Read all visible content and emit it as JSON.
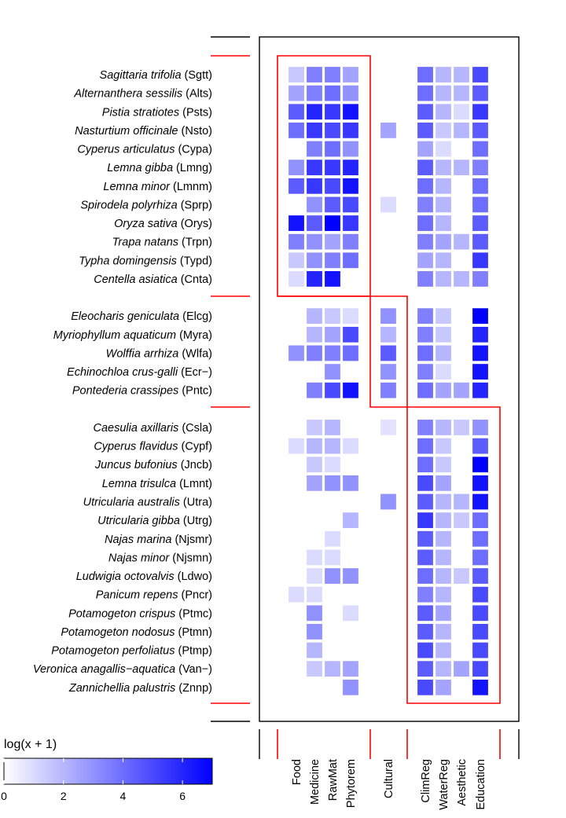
{
  "chart_data": {
    "type": "heatmap",
    "colorbar": {
      "title": "log(x + 1)",
      "ticks": [
        "0",
        "2",
        "4",
        "6"
      ],
      "range": [
        0,
        7
      ],
      "low_color": "#ffffff",
      "high_color": "#0000ff"
    },
    "columns": [
      "Food",
      "Medicine",
      "RawMat",
      "Phytorem",
      "Cultural",
      "ClimReg",
      "WaterReg",
      "Aesthetic",
      "Education"
    ],
    "column_group_sizes": [
      4,
      1,
      4
    ],
    "row_group_sizes": [
      12,
      5,
      15
    ],
    "rows": [
      {
        "name": "Sagittaria trifolia",
        "code": "(Sgtt)",
        "values": [
          1.5,
          3.5,
          3.5,
          2.5,
          null,
          4.0,
          2.0,
          2.0,
          5.0
        ]
      },
      {
        "name": "Alternanthera sessilis",
        "code": "(Alts)",
        "values": [
          2.5,
          3.5,
          4.0,
          3.0,
          null,
          4.0,
          2.0,
          2.0,
          4.5
        ]
      },
      {
        "name": "Pistia stratiotes",
        "code": "(Psts)",
        "values": [
          4.5,
          6.0,
          5.5,
          6.5,
          null,
          4.5,
          2.0,
          1.0,
          5.5
        ]
      },
      {
        "name": "Nasturtium officinale",
        "code": "(Nsto)",
        "values": [
          4.0,
          5.5,
          5.0,
          5.5,
          2.5,
          4.5,
          1.5,
          2.0,
          4.5
        ]
      },
      {
        "name": "Cyperus articulatus",
        "code": "(Cypa)",
        "values": [
          null,
          3.5,
          4.0,
          3.0,
          null,
          2.5,
          1.0,
          null,
          4.0
        ]
      },
      {
        "name": "Lemna gibba",
        "code": "(Lmng)",
        "values": [
          3.0,
          5.5,
          5.5,
          6.0,
          null,
          4.5,
          2.0,
          2.0,
          3.5
        ]
      },
      {
        "name": "Lemna minor",
        "code": "(Lmnm)",
        "values": [
          4.5,
          5.5,
          5.0,
          6.5,
          null,
          4.0,
          2.0,
          null,
          4.0
        ]
      },
      {
        "name": "Spirodela polyrhiza",
        "code": "(Sprp)",
        "values": [
          null,
          3.0,
          4.5,
          5.0,
          1.0,
          3.5,
          2.0,
          null,
          4.0
        ]
      },
      {
        "name": "Oryza sativa",
        "code": "(Orys)",
        "values": [
          6.5,
          4.5,
          7.0,
          5.5,
          null,
          4.0,
          2.0,
          null,
          4.5
        ]
      },
      {
        "name": "Trapa natans",
        "code": "(Trpn)",
        "values": [
          3.5,
          3.0,
          2.5,
          3.5,
          null,
          3.5,
          2.5,
          2.0,
          4.5
        ]
      },
      {
        "name": "Typha domingensis",
        "code": "(Typd)",
        "values": [
          1.5,
          3.0,
          3.5,
          4.0,
          null,
          2.5,
          2.0,
          null,
          5.5
        ]
      },
      {
        "name": "Centella asiatica",
        "code": "(Cnta)",
        "values": [
          1.0,
          6.0,
          6.5,
          null,
          null,
          3.5,
          2.0,
          2.0,
          3.5
        ]
      },
      {
        "name": "Eleocharis geniculata",
        "code": "(Elcg)",
        "values": [
          null,
          2.0,
          1.5,
          1.0,
          3.0,
          3.5,
          1.5,
          null,
          7.0
        ]
      },
      {
        "name": "Myriophyllum aquaticum",
        "code": "(Myra)",
        "values": [
          null,
          2.0,
          2.5,
          5.0,
          2.0,
          3.5,
          1.5,
          null,
          6.0
        ]
      },
      {
        "name": "Wolffia arrhiza",
        "code": "(Wlfa)",
        "values": [
          3.0,
          3.5,
          3.5,
          4.0,
          4.5,
          4.0,
          2.0,
          null,
          6.5
        ]
      },
      {
        "name": "Echinochloa crus-galli",
        "code": "(Ecr−)",
        "values": [
          null,
          null,
          3.0,
          null,
          3.0,
          3.5,
          1.0,
          null,
          6.5
        ]
      },
      {
        "name": "Pontederia crassipes",
        "code": "(Pntc)",
        "values": [
          null,
          3.5,
          5.0,
          6.5,
          3.5,
          4.0,
          2.5,
          2.5,
          6.0
        ]
      },
      {
        "name": "Caesulia axillaris",
        "code": "(Csla)",
        "values": [
          null,
          1.5,
          2.0,
          null,
          0.8,
          3.5,
          2.0,
          1.5,
          3.0
        ]
      },
      {
        "name": "Cyperus flavidus",
        "code": "(Cypf)",
        "values": [
          1.0,
          2.0,
          2.0,
          1.0,
          null,
          4.0,
          1.5,
          null,
          4.5
        ]
      },
      {
        "name": "Juncus bufonius",
        "code": "(Jncb)",
        "values": [
          null,
          1.5,
          1.0,
          null,
          null,
          4.0,
          1.5,
          null,
          7.0
        ]
      },
      {
        "name": "Lemna trisulca",
        "code": "(Lmnt)",
        "values": [
          null,
          2.5,
          3.0,
          3.0,
          null,
          5.0,
          2.5,
          null,
          6.5
        ]
      },
      {
        "name": "Utricularia australis",
        "code": "(Utra)",
        "values": [
          null,
          null,
          null,
          null,
          3.0,
          4.5,
          2.0,
          2.0,
          6.5
        ]
      },
      {
        "name": "Utricularia gibba",
        "code": "(Utrg)",
        "values": [
          null,
          null,
          null,
          2.0,
          null,
          5.5,
          2.0,
          1.5,
          4.0
        ]
      },
      {
        "name": "Najas marina",
        "code": "(Njsmr)",
        "values": [
          null,
          null,
          1.0,
          null,
          null,
          4.5,
          2.0,
          null,
          4.0
        ]
      },
      {
        "name": "Najas minor",
        "code": "(Njsmn)",
        "values": [
          null,
          1.0,
          1.0,
          null,
          null,
          4.5,
          2.0,
          null,
          4.0
        ]
      },
      {
        "name": "Ludwigia octovalvis",
        "code": "(Ldwo)",
        "values": [
          null,
          1.0,
          3.0,
          3.0,
          null,
          4.0,
          2.0,
          1.5,
          4.5
        ]
      },
      {
        "name": "Panicum repens",
        "code": "(Pncr)",
        "values": [
          1.0,
          1.0,
          null,
          null,
          null,
          3.5,
          2.0,
          null,
          5.0
        ]
      },
      {
        "name": "Potamogeton crispus",
        "code": "(Ptmc)",
        "values": [
          null,
          3.0,
          null,
          1.0,
          null,
          4.5,
          2.5,
          null,
          5.0
        ]
      },
      {
        "name": "Potamogeton nodosus",
        "code": "(Ptmn)",
        "values": [
          null,
          3.0,
          null,
          null,
          null,
          4.5,
          2.0,
          null,
          5.0
        ]
      },
      {
        "name": "Potamogeton perfoliatus",
        "code": "(Ptmp)",
        "values": [
          null,
          2.0,
          null,
          null,
          null,
          5.0,
          2.0,
          null,
          5.0
        ]
      },
      {
        "name": "Veronica anagallis−aquatica",
        "code": "(Van−)",
        "values": [
          null,
          1.5,
          2.0,
          2.5,
          null,
          4.5,
          2.0,
          2.5,
          5.0
        ]
      },
      {
        "name": "Zannichellia palustris",
        "code": "(Znnp)",
        "values": [
          null,
          null,
          null,
          3.0,
          null,
          5.0,
          2.5,
          null,
          6.5
        ]
      }
    ]
  }
}
